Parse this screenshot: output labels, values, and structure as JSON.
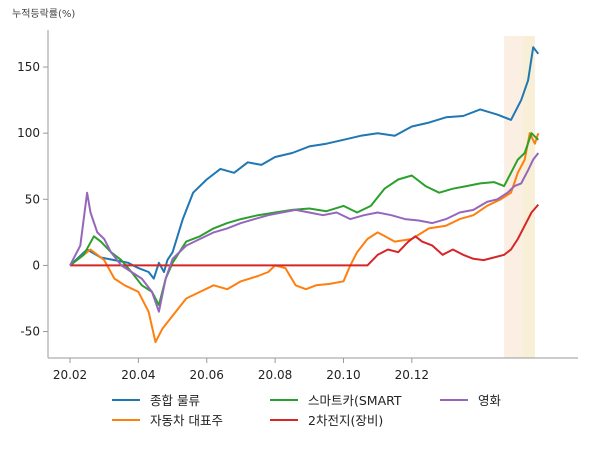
{
  "chart_data": {
    "type": "line",
    "unit_label": "누적등락률(%)",
    "xlabel": "",
    "ylabel": "",
    "x_ticks": [
      "20.02",
      "20.04",
      "20.06",
      "20.08",
      "20.10",
      "20.12"
    ],
    "y_ticks": [
      -50,
      0,
      50,
      100,
      150
    ],
    "ylim": [
      -70,
      178
    ],
    "xlim": [
      0,
      14.1
    ],
    "grid": false,
    "legend_position": "bottom",
    "highlight_bands": [
      {
        "x0": 12.7,
        "x1": 13.25,
        "color": "#fbefe3"
      },
      {
        "x0": 13.25,
        "x1": 13.6,
        "color": "#f8f0d6"
      }
    ],
    "series": [
      {
        "name": "종합 물류",
        "color": "#1f77b4",
        "points": [
          [
            0,
            0
          ],
          [
            0.5,
            12
          ],
          [
            0.9,
            6
          ],
          [
            1.3,
            4
          ],
          [
            1.7,
            2
          ],
          [
            2.0,
            -2
          ],
          [
            2.3,
            -5
          ],
          [
            2.45,
            -10
          ],
          [
            2.6,
            2
          ],
          [
            2.75,
            -5
          ],
          [
            2.85,
            4
          ],
          [
            3.0,
            10
          ],
          [
            3.3,
            35
          ],
          [
            3.6,
            55
          ],
          [
            4.0,
            65
          ],
          [
            4.4,
            73
          ],
          [
            4.8,
            70
          ],
          [
            5.2,
            78
          ],
          [
            5.6,
            76
          ],
          [
            6.0,
            82
          ],
          [
            6.5,
            85
          ],
          [
            7.0,
            90
          ],
          [
            7.5,
            92
          ],
          [
            8.0,
            95
          ],
          [
            8.5,
            98
          ],
          [
            9.0,
            100
          ],
          [
            9.5,
            98
          ],
          [
            10.0,
            105
          ],
          [
            10.5,
            108
          ],
          [
            11.0,
            112
          ],
          [
            11.5,
            113
          ],
          [
            12.0,
            118
          ],
          [
            12.5,
            114
          ],
          [
            12.9,
            110
          ],
          [
            13.2,
            125
          ],
          [
            13.4,
            140
          ],
          [
            13.55,
            165
          ],
          [
            13.7,
            160
          ]
        ]
      },
      {
        "name": "자동차 대표주",
        "color": "#ff7f0e",
        "points": [
          [
            0,
            0
          ],
          [
            0.6,
            12
          ],
          [
            1.0,
            4
          ],
          [
            1.3,
            -10
          ],
          [
            1.6,
            -15
          ],
          [
            2.0,
            -20
          ],
          [
            2.3,
            -35
          ],
          [
            2.5,
            -58
          ],
          [
            2.7,
            -48
          ],
          [
            3.0,
            -38
          ],
          [
            3.4,
            -25
          ],
          [
            3.8,
            -20
          ],
          [
            4.2,
            -15
          ],
          [
            4.6,
            -18
          ],
          [
            5.0,
            -12
          ],
          [
            5.5,
            -8
          ],
          [
            5.8,
            -5
          ],
          [
            6.0,
            0
          ],
          [
            6.3,
            -2
          ],
          [
            6.6,
            -15
          ],
          [
            6.9,
            -18
          ],
          [
            7.2,
            -15
          ],
          [
            7.6,
            -14
          ],
          [
            8.0,
            -12
          ],
          [
            8.2,
            0
          ],
          [
            8.4,
            10
          ],
          [
            8.7,
            20
          ],
          [
            9.0,
            25
          ],
          [
            9.5,
            18
          ],
          [
            10.0,
            20
          ],
          [
            10.5,
            28
          ],
          [
            11.0,
            30
          ],
          [
            11.4,
            35
          ],
          [
            11.8,
            38
          ],
          [
            12.2,
            45
          ],
          [
            12.6,
            50
          ],
          [
            12.9,
            55
          ],
          [
            13.1,
            70
          ],
          [
            13.3,
            80
          ],
          [
            13.45,
            100
          ],
          [
            13.6,
            92
          ],
          [
            13.7,
            100
          ]
        ]
      },
      {
        "name": "스마트카(SMART",
        "color": "#2ca02c",
        "points": [
          [
            0,
            0
          ],
          [
            0.4,
            8
          ],
          [
            0.7,
            22
          ],
          [
            0.9,
            18
          ],
          [
            1.2,
            10
          ],
          [
            1.5,
            4
          ],
          [
            1.8,
            -5
          ],
          [
            2.1,
            -15
          ],
          [
            2.4,
            -20
          ],
          [
            2.6,
            -30
          ],
          [
            2.8,
            -10
          ],
          [
            3.0,
            2
          ],
          [
            3.4,
            18
          ],
          [
            3.8,
            22
          ],
          [
            4.2,
            28
          ],
          [
            4.6,
            32
          ],
          [
            5.0,
            35
          ],
          [
            5.5,
            38
          ],
          [
            6.0,
            40
          ],
          [
            6.5,
            42
          ],
          [
            7.0,
            43
          ],
          [
            7.5,
            41
          ],
          [
            8.0,
            45
          ],
          [
            8.4,
            40
          ],
          [
            8.8,
            45
          ],
          [
            9.2,
            58
          ],
          [
            9.6,
            65
          ],
          [
            10.0,
            68
          ],
          [
            10.4,
            60
          ],
          [
            10.8,
            55
          ],
          [
            11.2,
            58
          ],
          [
            11.6,
            60
          ],
          [
            12.0,
            62
          ],
          [
            12.4,
            63
          ],
          [
            12.7,
            60
          ],
          [
            12.9,
            70
          ],
          [
            13.1,
            80
          ],
          [
            13.3,
            85
          ],
          [
            13.5,
            100
          ],
          [
            13.7,
            95
          ]
        ]
      },
      {
        "name": "2차전지(장비)",
        "color": "#d62728",
        "points": [
          [
            0,
            0
          ],
          [
            1.0,
            0
          ],
          [
            2.0,
            0
          ],
          [
            3.0,
            0
          ],
          [
            4.0,
            0
          ],
          [
            5.0,
            0
          ],
          [
            6.0,
            0
          ],
          [
            7.0,
            0
          ],
          [
            8.0,
            0
          ],
          [
            8.7,
            0
          ],
          [
            9.0,
            8
          ],
          [
            9.3,
            12
          ],
          [
            9.6,
            10
          ],
          [
            9.9,
            18
          ],
          [
            10.1,
            22
          ],
          [
            10.3,
            18
          ],
          [
            10.6,
            15
          ],
          [
            10.9,
            8
          ],
          [
            11.2,
            12
          ],
          [
            11.5,
            8
          ],
          [
            11.8,
            5
          ],
          [
            12.1,
            4
          ],
          [
            12.4,
            6
          ],
          [
            12.7,
            8
          ],
          [
            12.9,
            12
          ],
          [
            13.1,
            20
          ],
          [
            13.3,
            30
          ],
          [
            13.5,
            40
          ],
          [
            13.7,
            46
          ]
        ]
      },
      {
        "name": "영화",
        "color": "#9467bd",
        "points": [
          [
            0,
            0
          ],
          [
            0.3,
            15
          ],
          [
            0.5,
            55
          ],
          [
            0.6,
            40
          ],
          [
            0.8,
            25
          ],
          [
            1.0,
            20
          ],
          [
            1.2,
            10
          ],
          [
            1.5,
            0
          ],
          [
            1.8,
            -5
          ],
          [
            2.1,
            -10
          ],
          [
            2.4,
            -20
          ],
          [
            2.6,
            -35
          ],
          [
            2.8,
            -10
          ],
          [
            3.0,
            5
          ],
          [
            3.4,
            15
          ],
          [
            3.8,
            20
          ],
          [
            4.2,
            25
          ],
          [
            4.6,
            28
          ],
          [
            5.0,
            32
          ],
          [
            5.4,
            35
          ],
          [
            5.8,
            38
          ],
          [
            6.2,
            40
          ],
          [
            6.6,
            42
          ],
          [
            7.0,
            40
          ],
          [
            7.4,
            38
          ],
          [
            7.8,
            40
          ],
          [
            8.2,
            35
          ],
          [
            8.6,
            38
          ],
          [
            9.0,
            40
          ],
          [
            9.4,
            38
          ],
          [
            9.8,
            35
          ],
          [
            10.2,
            34
          ],
          [
            10.6,
            32
          ],
          [
            11.0,
            35
          ],
          [
            11.4,
            40
          ],
          [
            11.8,
            42
          ],
          [
            12.2,
            48
          ],
          [
            12.5,
            50
          ],
          [
            12.8,
            55
          ],
          [
            13.0,
            60
          ],
          [
            13.2,
            62
          ],
          [
            13.4,
            72
          ],
          [
            13.55,
            80
          ],
          [
            13.7,
            85
          ]
        ]
      }
    ]
  }
}
